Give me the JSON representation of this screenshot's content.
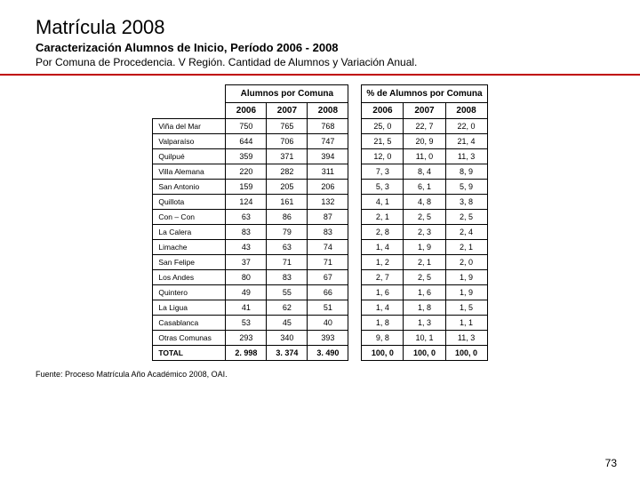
{
  "title": "Matrícula 2008",
  "subtitle": "Caracterización Alumnos de Inicio, Período 2006 - 2008",
  "subtitle2": "Por Comuna de Procedencia. V Región. Cantidad de Alumnos y Variación Anual.",
  "table1_header": "Alumnos por Comuna",
  "table2_header": "% de Alumnos por Comuna",
  "years": [
    "2006",
    "2007",
    "2008"
  ],
  "rows": [
    {
      "label": "Viña del Mar",
      "abs": [
        "750",
        "765",
        "768"
      ],
      "pct": [
        "25, 0",
        "22, 7",
        "22, 0"
      ]
    },
    {
      "label": "Valparaíso",
      "abs": [
        "644",
        "706",
        "747"
      ],
      "pct": [
        "21, 5",
        "20, 9",
        "21, 4"
      ]
    },
    {
      "label": "Quilpué",
      "abs": [
        "359",
        "371",
        "394"
      ],
      "pct": [
        "12, 0",
        "11, 0",
        "11, 3"
      ]
    },
    {
      "label": "Villa Alemana",
      "abs": [
        "220",
        "282",
        "311"
      ],
      "pct": [
        "7, 3",
        "8, 4",
        "8, 9"
      ]
    },
    {
      "label": "San Antonio",
      "abs": [
        "159",
        "205",
        "206"
      ],
      "pct": [
        "5, 3",
        "6, 1",
        "5, 9"
      ]
    },
    {
      "label": "Quillota",
      "abs": [
        "124",
        "161",
        "132"
      ],
      "pct": [
        "4, 1",
        "4, 8",
        "3, 8"
      ]
    },
    {
      "label": "Con – Con",
      "abs": [
        "63",
        "86",
        "87"
      ],
      "pct": [
        "2, 1",
        "2, 5",
        "2, 5"
      ]
    },
    {
      "label": "La Calera",
      "abs": [
        "83",
        "79",
        "83"
      ],
      "pct": [
        "2, 8",
        "2, 3",
        "2, 4"
      ]
    },
    {
      "label": "Limache",
      "abs": [
        "43",
        "63",
        "74"
      ],
      "pct": [
        "1, 4",
        "1, 9",
        "2, 1"
      ]
    },
    {
      "label": "San Felipe",
      "abs": [
        "37",
        "71",
        "71"
      ],
      "pct": [
        "1, 2",
        "2, 1",
        "2, 0"
      ]
    },
    {
      "label": "Los Andes",
      "abs": [
        "80",
        "83",
        "67"
      ],
      "pct": [
        "2, 7",
        "2, 5",
        "1, 9"
      ]
    },
    {
      "label": "Quintero",
      "abs": [
        "49",
        "55",
        "66"
      ],
      "pct": [
        "1, 6",
        "1, 6",
        "1, 9"
      ]
    },
    {
      "label": "La Ligua",
      "abs": [
        "41",
        "62",
        "51"
      ],
      "pct": [
        "1, 4",
        "1, 8",
        "1, 5"
      ]
    },
    {
      "label": "Casablanca",
      "abs": [
        "53",
        "45",
        "40"
      ],
      "pct": [
        "1, 8",
        "1, 3",
        "1, 1"
      ]
    },
    {
      "label": "Otras Comunas",
      "abs": [
        "293",
        "340",
        "393"
      ],
      "pct": [
        "9, 8",
        "10, 1",
        "11, 3"
      ]
    }
  ],
  "total": {
    "label": "TOTAL",
    "abs": [
      "2. 998",
      "3. 374",
      "3. 490"
    ],
    "pct": [
      "100, 0",
      "100, 0",
      "100, 0"
    ]
  },
  "source": "Fuente: Proceso Matrícula Año Académico 2008, OAI.",
  "pagenum": "73",
  "colors": {
    "redline": "#c00000",
    "border": "#000000",
    "background": "#ffffff"
  }
}
